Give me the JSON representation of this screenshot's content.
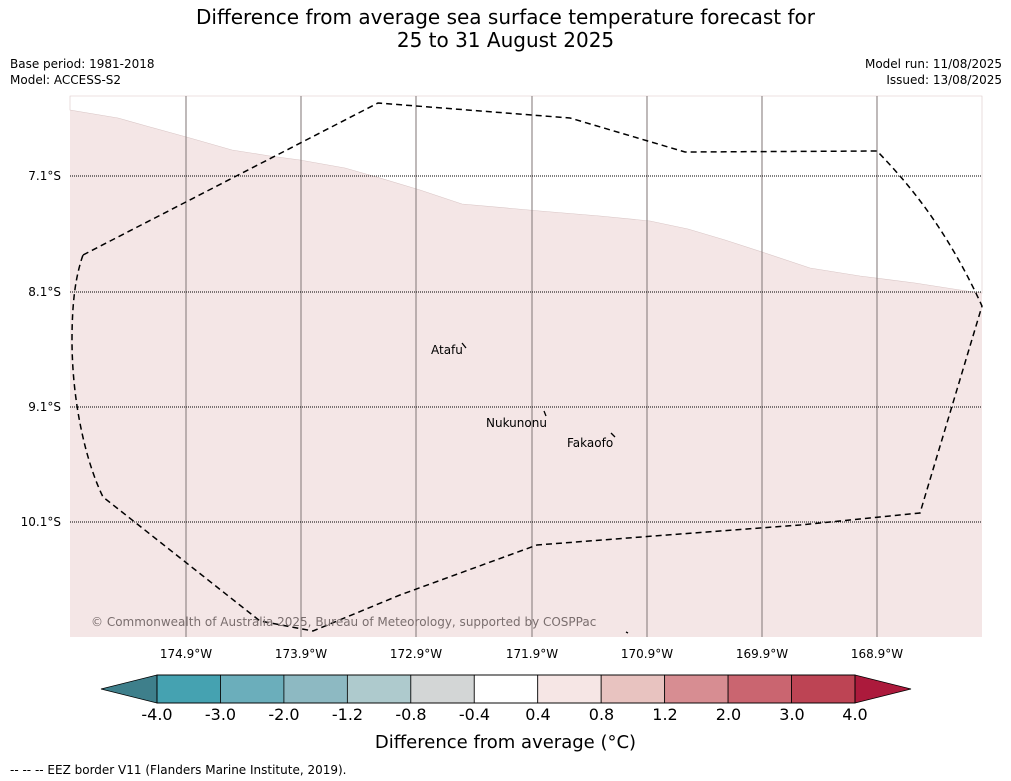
{
  "title": {
    "line1": "Difference from average sea surface temperature forecast for",
    "line2": "25 to 31 August 2025"
  },
  "meta": {
    "base_period": "Base period: 1981-2018",
    "model": "Model: ACCESS-S2",
    "model_run": "Model run: 11/08/2025",
    "issued": "Issued: 13/08/2025"
  },
  "map": {
    "latitudes": [
      "7.1°S",
      "8.1°S",
      "9.1°S",
      "10.1°S"
    ],
    "longitudes": [
      "174.9°W",
      "173.9°W",
      "172.9°W",
      "171.9°W",
      "170.9°W",
      "169.9°W",
      "168.9°W"
    ],
    "islands": [
      "Atafu",
      "Nukunonu",
      "Fakaofo"
    ],
    "copyright": "© Commonwealth of Australia 2025, Bureau of Meteorology, supported by COSPPac",
    "fill_color": "#f4e6e6",
    "upper_fill_color": "#ffffff"
  },
  "colorbar": {
    "ticks": [
      "-4.0",
      "-3.0",
      "-2.0",
      "-1.2",
      "-0.8",
      "-0.4",
      "0.4",
      "0.8",
      "1.2",
      "2.0",
      "3.0",
      "4.0"
    ],
    "colors": [
      "#3e7f8b",
      "#45a2b1",
      "#6baebb",
      "#8db9c2",
      "#aecacd",
      "#d3d6d6",
      "#ffffff",
      "#f6e6e5",
      "#e8c3c0",
      "#d78d92",
      "#ca6570",
      "#bd4454",
      "#ac1a3c"
    ],
    "label": "Difference from average (°C)"
  },
  "footnote": "--  --  -- EEZ border V11 (Flanders Marine Institute, 2019)."
}
